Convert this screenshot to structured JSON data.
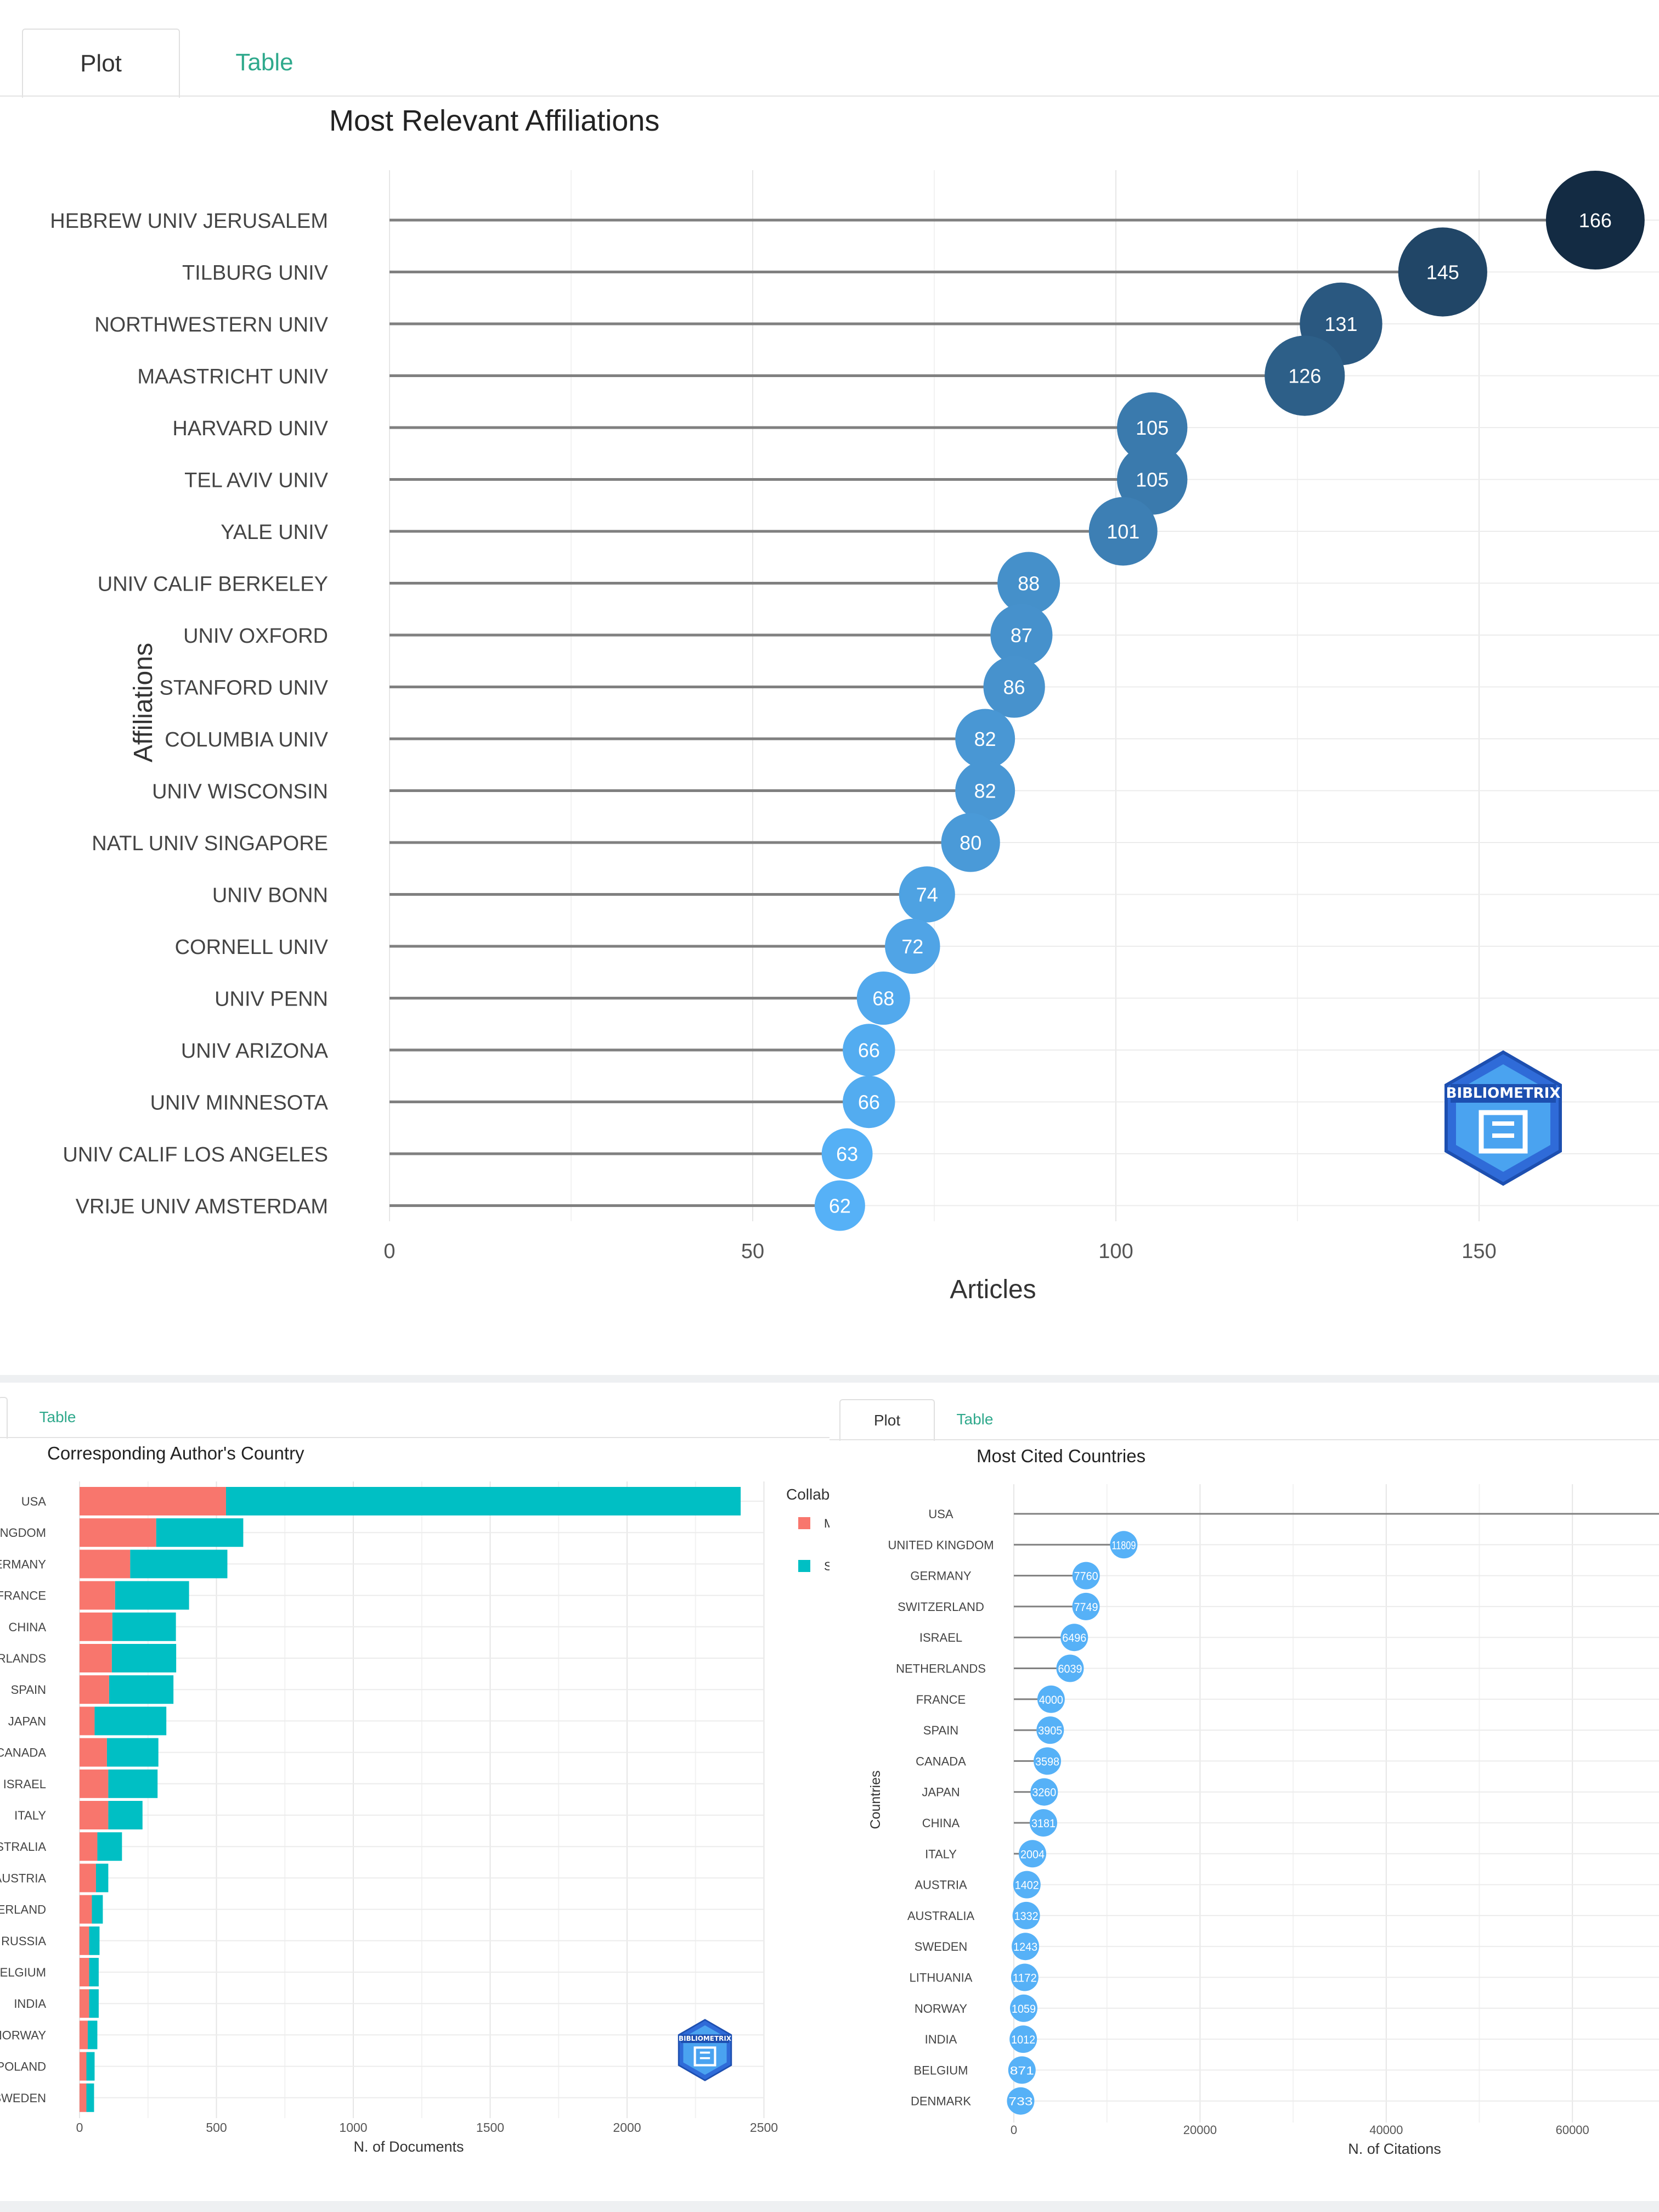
{
  "top": {
    "tabs": [
      {
        "label": "Plot",
        "active": true
      },
      {
        "label": "Table",
        "active": false
      }
    ],
    "chart_data": {
      "type": "scatter",
      "title": "Most Relevant Affiliations",
      "xlabel": "Articles",
      "ylabel": "Affiliations",
      "xlim": [
        0,
        175
      ],
      "xticks": [
        0,
        50,
        100,
        150
      ],
      "grid": true,
      "categories": [
        "HEBREW UNIV JERUSALEM",
        "TILBURG UNIV",
        "NORTHWESTERN UNIV",
        "MAASTRICHT UNIV",
        "HARVARD UNIV",
        "TEL AVIV UNIV",
        "YALE UNIV",
        "UNIV CALIF BERKELEY",
        "UNIV OXFORD",
        "STANFORD UNIV",
        "COLUMBIA UNIV",
        "UNIV WISCONSIN",
        "NATL UNIV SINGAPORE",
        "UNIV BONN",
        "CORNELL UNIV",
        "UNIV PENN",
        "UNIV ARIZONA",
        "UNIV MINNESOTA",
        "UNIV CALIF LOS ANGELES",
        "VRIJE UNIV AMSTERDAM"
      ],
      "values": [
        166,
        145,
        131,
        126,
        105,
        105,
        101,
        88,
        87,
        86,
        82,
        82,
        80,
        74,
        72,
        68,
        66,
        66,
        63,
        62
      ],
      "colors": {
        "low": "#56b1f7",
        "high": "#132b43",
        "stem": "#808080"
      },
      "logo_text": "BIBLIOMETRIX"
    }
  },
  "bottom_left": {
    "tabs": [
      {
        "label": "Table",
        "active": false
      }
    ],
    "chart_data": {
      "type": "bar",
      "title": "Corresponding Author's Country",
      "xlabel": "N. of Documents",
      "ylabel": "",
      "xlim": [
        0,
        2500
      ],
      "xticks": [
        0,
        500,
        1000,
        1500,
        2000,
        2500
      ],
      "grid": true,
      "categories": [
        "USA",
        "KINGDOM",
        "GERMANY",
        "FRANCE",
        "CHINA",
        "NETHERLANDS",
        "SPAIN",
        "JAPAN",
        "CANADA",
        "ISRAEL",
        "ITALY",
        "AUSTRALIA",
        "AUSTRIA",
        "SWITZERLAND",
        "RUSSIA",
        "BELGIUM",
        "INDIA",
        "NORWAY",
        "POLAND",
        "SWEDEN"
      ],
      "series": [
        {
          "name": "M",
          "color": "#f8766d",
          "values": [
            535,
            280,
            185,
            130,
            120,
            118,
            108,
            55,
            100,
            105,
            105,
            65,
            60,
            45,
            35,
            35,
            35,
            30,
            25,
            25
          ]
        },
        {
          "name": "S",
          "color": "#00bfc4",
          "values": [
            1880,
            318,
            355,
            270,
            232,
            235,
            235,
            262,
            188,
            180,
            125,
            90,
            45,
            40,
            38,
            35,
            35,
            35,
            30,
            28
          ]
        }
      ],
      "legend": {
        "title": "Collab",
        "position": "right"
      },
      "logo_text": "BIBLIOMETRIX"
    }
  },
  "bottom_right": {
    "tabs": [
      {
        "label": "Plot",
        "active": true
      },
      {
        "label": "Table",
        "active": false
      }
    ],
    "chart_data": {
      "type": "scatter",
      "title": "Most Cited Countries",
      "xlabel": "N. of Citations",
      "ylabel": "Countries",
      "xlim": [
        0,
        69500
      ],
      "xticks": [
        0,
        20000,
        40000,
        60000
      ],
      "grid": true,
      "categories": [
        "USA",
        "UNITED KINGDOM",
        "GERMANY",
        "SWITZERLAND",
        "ISRAEL",
        "NETHERLANDS",
        "FRANCE",
        "SPAIN",
        "CANADA",
        "JAPAN",
        "CHINA",
        "ITALY",
        "AUSTRIA",
        "AUSTRALIA",
        "SWEDEN",
        "LITHUANIA",
        "NORWAY",
        "INDIA",
        "BELGIUM",
        "DENMARK"
      ],
      "values": [
        70000,
        11809,
        7760,
        7749,
        6496,
        6039,
        4000,
        3905,
        3598,
        3260,
        3181,
        2004,
        1402,
        1332,
        1243,
        1172,
        1059,
        1012,
        871,
        733
      ],
      "colors": {
        "point": "#56b1f7",
        "stem": "#808080"
      }
    }
  }
}
